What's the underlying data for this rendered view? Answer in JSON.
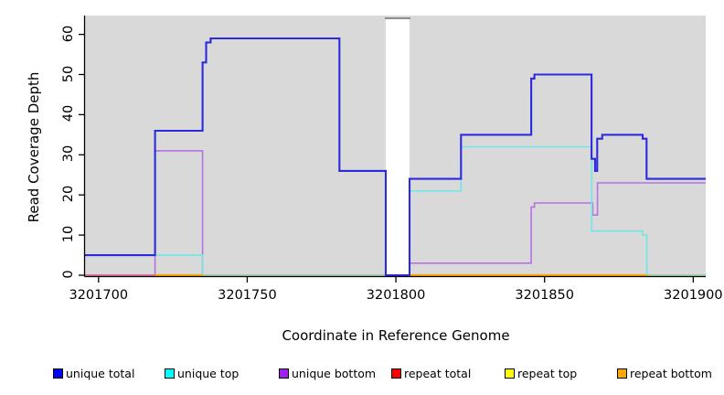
{
  "chart_data": {
    "type": "line",
    "subtype": "step",
    "title": "",
    "xlabel": "Coordinate in Reference Genome",
    "ylabel": "Read Coverage Depth",
    "x_ticks": [
      3201700,
      3201750,
      3201800,
      3201850,
      3201900
    ],
    "y_ticks": [
      0,
      10,
      20,
      30,
      40,
      50,
      60
    ],
    "xlim": [
      3201695.3,
      3201904.2
    ],
    "ylim": [
      0,
      64.8
    ],
    "plot_bg": "#d9d9d9",
    "grid": false,
    "gap_band": {
      "x_start": 3201796.6,
      "x_end": 3201804.6,
      "color": "#ffffff",
      "top_line_color": "#8c8c8c"
    },
    "series": [
      {
        "name": "unique-bottom",
        "label": "unique bottom",
        "legend_color": "#a020f0",
        "line_color": "#b573e0",
        "line_width": 1.6,
        "segments": [
          [
            [
              3201695.3,
              0
            ],
            [
              3201719,
              31
            ],
            [
              3201735,
              0
            ],
            [
              3201796.6,
              0
            ]
          ],
          [
            [
              3201804.6,
              3
            ],
            [
              3201845.5,
              17
            ],
            [
              3201846.6,
              18
            ],
            [
              3201866.2,
              15
            ],
            [
              3201867.8,
              23
            ],
            [
              3201904.2,
              23
            ]
          ]
        ]
      },
      {
        "name": "unique-top",
        "label": "unique top",
        "legend_color": "#00ffff",
        "line_color": "#6fe7e9",
        "line_width": 1.6,
        "segments": [
          [
            [
              3201695.3,
              5
            ],
            [
              3201735,
              0
            ],
            [
              3201796.6,
              0
            ]
          ],
          [
            [
              3201804.6,
              21
            ],
            [
              3201821.9,
              32
            ],
            [
              3201865.9,
              11
            ],
            [
              3201883,
              10
            ],
            [
              3201884.4,
              0
            ],
            [
              3201904.2,
              0
            ]
          ]
        ]
      },
      {
        "name": "repeat-top-overlap",
        "label": "repeat top",
        "legend_color": "#ffff00",
        "line_color": "#9fce9f",
        "line_width": 1.7,
        "segments": [
          [
            [
              3201735,
              0
            ],
            [
              3201796.6,
              0
            ]
          ],
          [
            [
              3201884.4,
              0
            ],
            [
              3201904.2,
              0
            ]
          ]
        ]
      },
      {
        "name": "repeat-total",
        "label": "repeat total",
        "legend_color": "#ff0000",
        "line_color": "#e0649b",
        "line_width": 1.8,
        "segments": [
          [
            [
              3201695.3,
              0
            ],
            [
              3201719,
              0
            ]
          ]
        ]
      },
      {
        "name": "repeat-bottom",
        "label": "repeat bottom",
        "legend_color": "#ffa500",
        "line_color": "#ffa500",
        "line_width": 2.3,
        "segments": [
          [
            [
              3201719,
              0
            ],
            [
              3201735,
              0
            ]
          ],
          [
            [
              3201804.6,
              0
            ],
            [
              3201884.4,
              0
            ]
          ]
        ]
      },
      {
        "name": "unique-total",
        "label": "unique total",
        "legend_color": "#0000ff",
        "line_color": "#2d2ade",
        "line_width": 2.1,
        "segments": [
          [
            [
              3201695.3,
              5
            ],
            [
              3201719,
              36
            ],
            [
              3201735,
              53
            ],
            [
              3201736.2,
              58
            ],
            [
              3201737.7,
              59
            ],
            [
              3201781,
              26
            ],
            [
              3201796.6,
              0
            ],
            [
              3201804.6,
              24
            ],
            [
              3201821.9,
              35
            ],
            [
              3201845.5,
              49
            ],
            [
              3201846.6,
              50
            ],
            [
              3201865.8,
              29
            ],
            [
              3201867,
              26
            ],
            [
              3201867.7,
              34
            ],
            [
              3201869.4,
              35
            ],
            [
              3201883,
              34
            ],
            [
              3201884.3,
              24
            ],
            [
              3201904.2,
              24
            ]
          ]
        ]
      }
    ],
    "legend": [
      {
        "label": "unique total",
        "color": "#0000ff"
      },
      {
        "label": "unique top",
        "color": "#00ffff"
      },
      {
        "label": "unique bottom",
        "color": "#a020f0"
      },
      {
        "label": "repeat total",
        "color": "#ff0000"
      },
      {
        "label": "repeat top",
        "color": "#ffff00"
      },
      {
        "label": "repeat bottom",
        "color": "#ffa500"
      }
    ],
    "legend_position": "bottom"
  }
}
